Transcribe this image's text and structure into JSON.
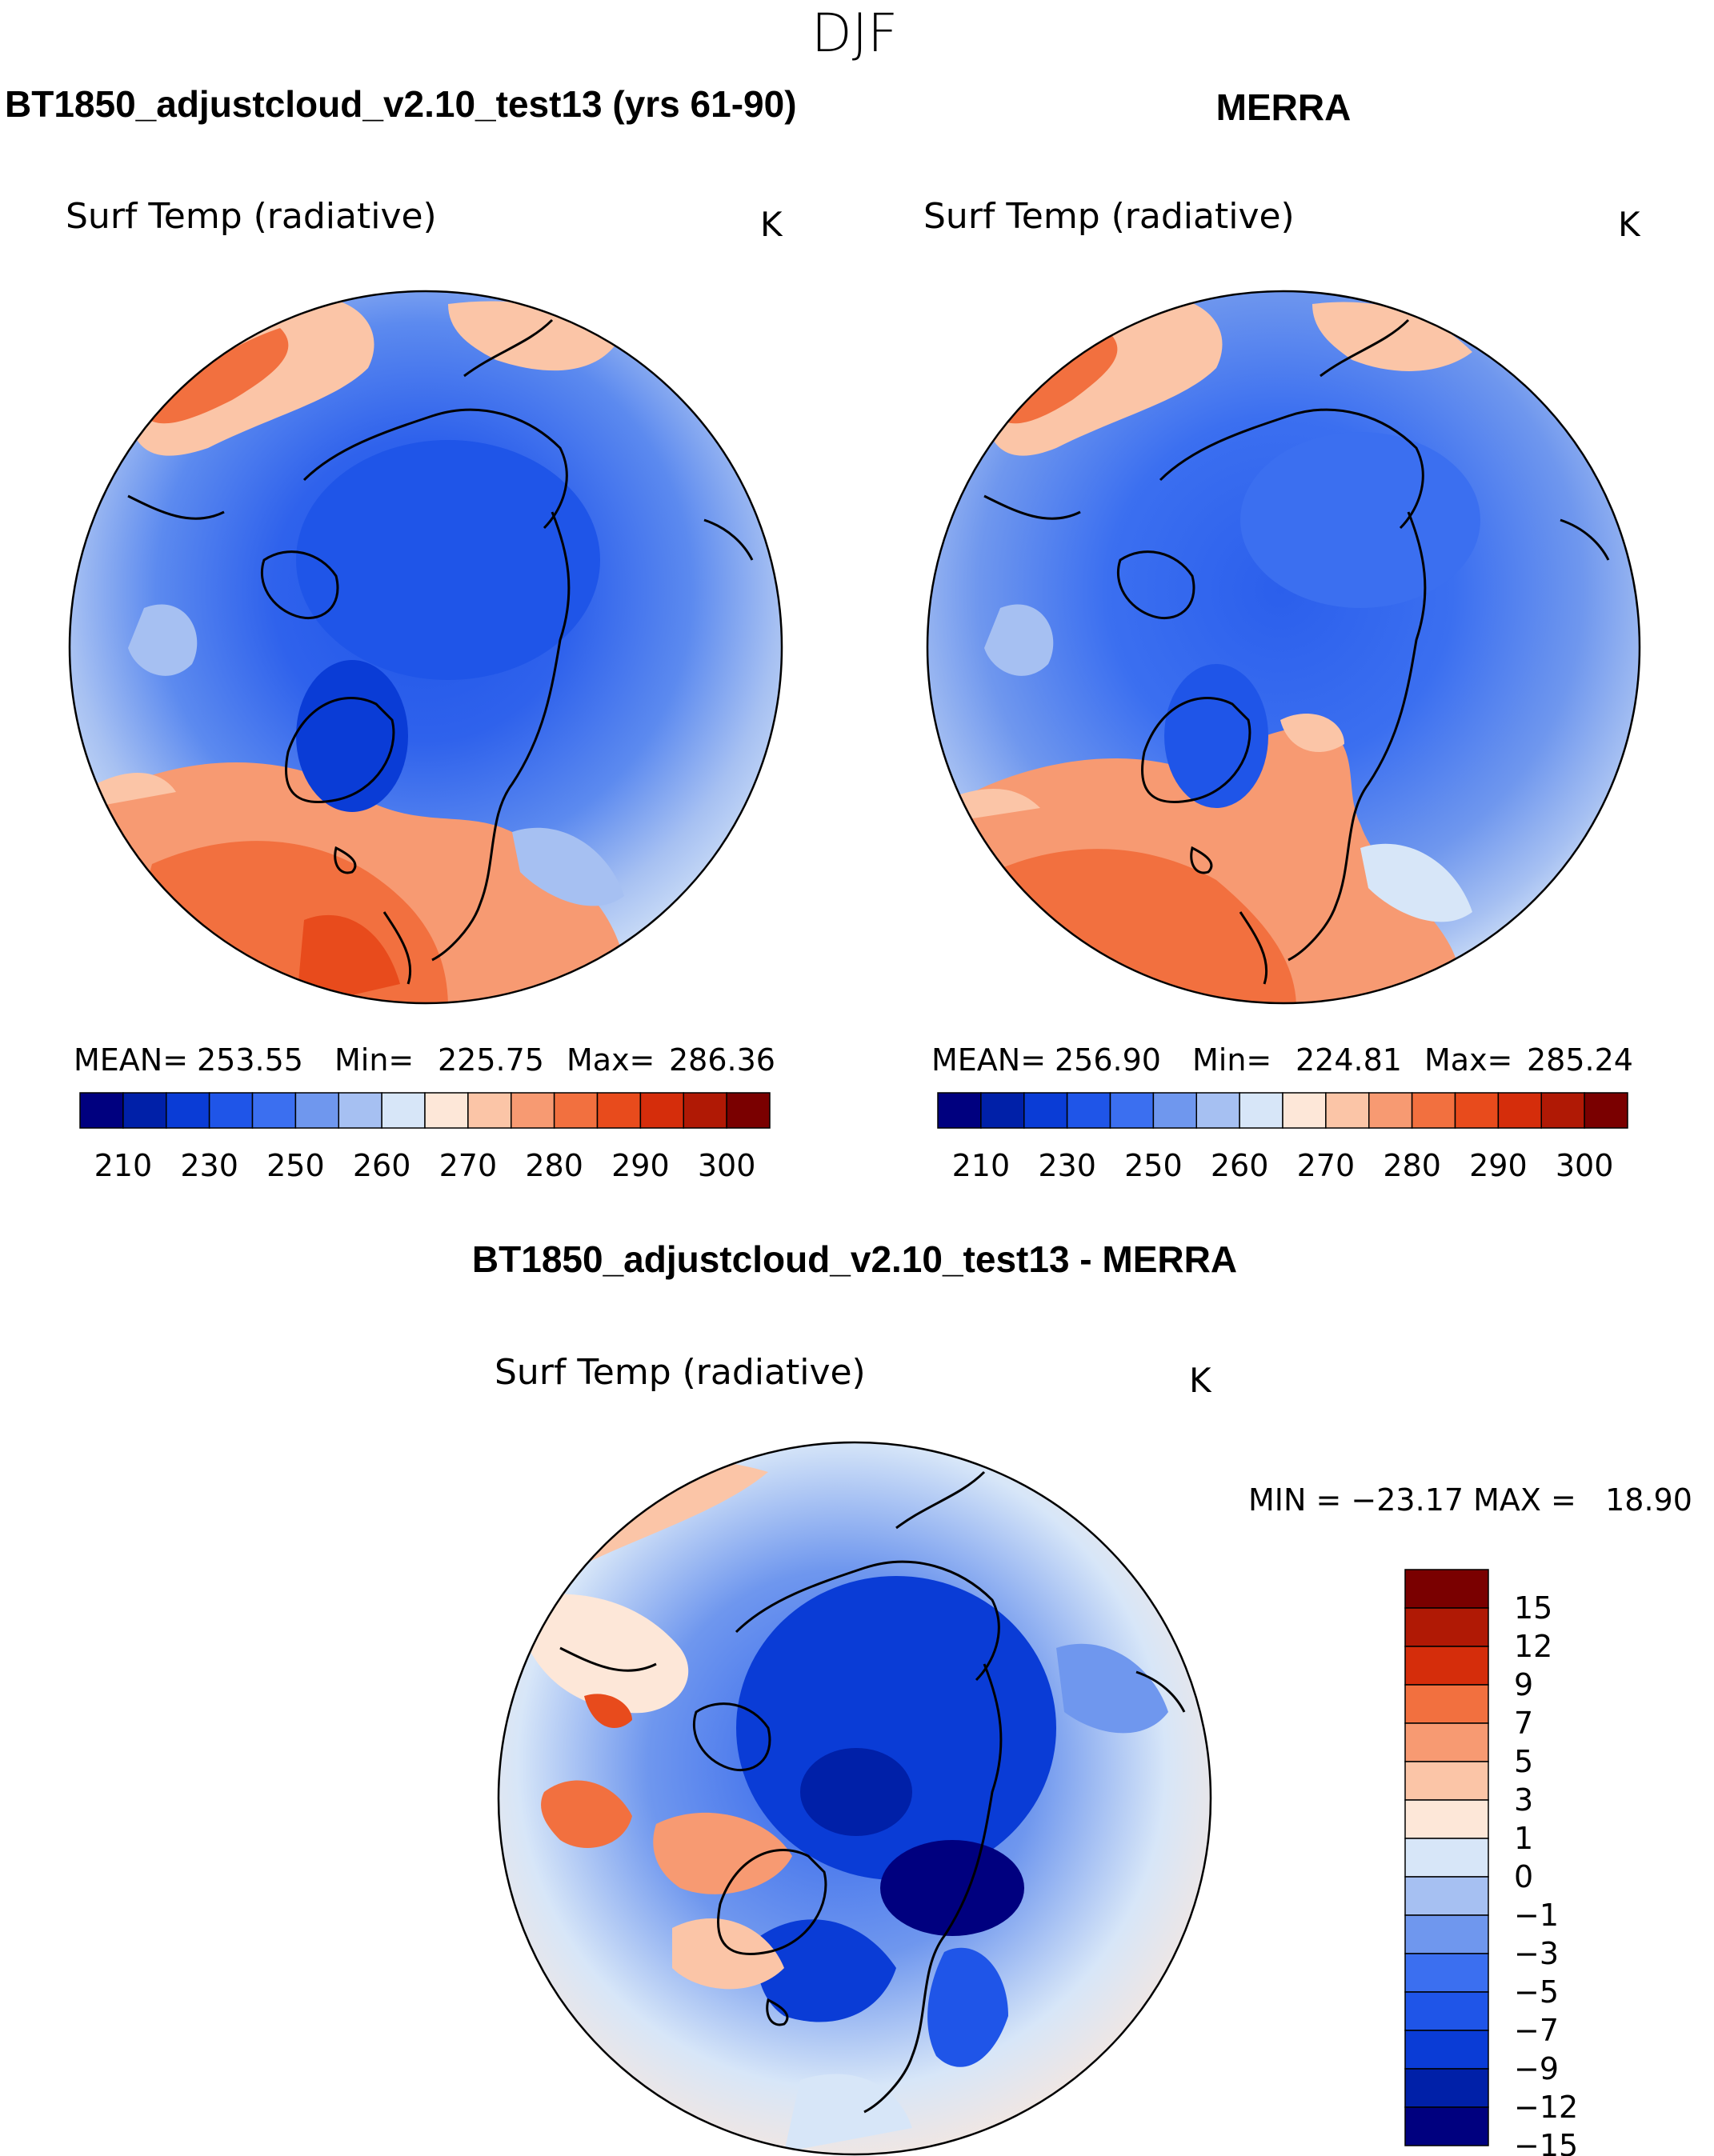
{
  "figure": {
    "season": "DJF"
  },
  "chart_data": [
    {
      "type": "heatmap",
      "projection": "north-polar-stereographic",
      "header": "BT1850_adjustcloud_v2.10_test13 (yrs 61-90)",
      "title": "Surf Temp (radiative)",
      "units": "K",
      "stats": {
        "mean_label": "MEAN=",
        "mean": "253.55",
        "min_label": "Min=",
        "min": "225.75",
        "max_label": "Max=",
        "max": "286.36"
      },
      "colorbar": {
        "orientation": "horizontal",
        "levels": [
          210,
          220,
          230,
          240,
          250,
          255,
          260,
          265,
          270,
          275,
          280,
          285,
          290,
          295,
          300
        ],
        "tick_labels": [
          "210",
          "230",
          "250",
          "260",
          "270",
          "280",
          "290",
          "300"
        ],
        "colors": [
          "#00007f",
          "#0020a8",
          "#0a3cd6",
          "#1f55e8",
          "#3b6ff0",
          "#6f97ee",
          "#a6c0f2",
          "#d7e6f8",
          "#fde7d8",
          "#fbc5a7",
          "#f79a72",
          "#f2703f",
          "#e84b1c",
          "#d52d0b",
          "#b01905",
          "#7a0000"
        ]
      }
    },
    {
      "type": "heatmap",
      "projection": "north-polar-stereographic",
      "header": "MERRA",
      "title": "Surf Temp (radiative)",
      "units": "K",
      "stats": {
        "mean_label": "MEAN=",
        "mean": "256.90",
        "min_label": "Min=",
        "min": "224.81",
        "max_label": "Max=",
        "max": "285.24"
      },
      "colorbar": {
        "orientation": "horizontal",
        "levels": [
          210,
          220,
          230,
          240,
          250,
          255,
          260,
          265,
          270,
          275,
          280,
          285,
          290,
          295,
          300
        ],
        "tick_labels": [
          "210",
          "230",
          "250",
          "260",
          "270",
          "280",
          "290",
          "300"
        ],
        "colors": [
          "#00007f",
          "#0020a8",
          "#0a3cd6",
          "#1f55e8",
          "#3b6ff0",
          "#6f97ee",
          "#a6c0f2",
          "#d7e6f8",
          "#fde7d8",
          "#fbc5a7",
          "#f79a72",
          "#f2703f",
          "#e84b1c",
          "#d52d0b",
          "#b01905",
          "#7a0000"
        ]
      }
    },
    {
      "type": "heatmap",
      "projection": "north-polar-stereographic",
      "header": "BT1850_adjustcloud_v2.10_test13 - MERRA",
      "title": "Surf Temp (radiative)",
      "units": "K",
      "stats": {
        "text": "MIN = −23.17 MAX =   18.90"
      },
      "colorbar": {
        "orientation": "vertical",
        "levels": [
          15,
          12,
          9,
          7,
          5,
          3,
          1,
          0,
          -1,
          -3,
          -5,
          -7,
          -9,
          -12,
          -15
        ],
        "tick_labels": [
          "15",
          "12",
          "9",
          "7",
          "5",
          "3",
          "1",
          "0",
          "−1",
          "−3",
          "−5",
          "−7",
          "−9",
          "−12",
          "−15"
        ],
        "colors": [
          "#7a0000",
          "#b01905",
          "#d52d0b",
          "#f2703f",
          "#f79a72",
          "#fbc5a7",
          "#fde7d8",
          "#d7e6f8",
          "#a6c0f2",
          "#6f97ee",
          "#3b6ff0",
          "#1f55e8",
          "#0a3cd6",
          "#0020a8",
          "#00007f"
        ]
      }
    }
  ]
}
